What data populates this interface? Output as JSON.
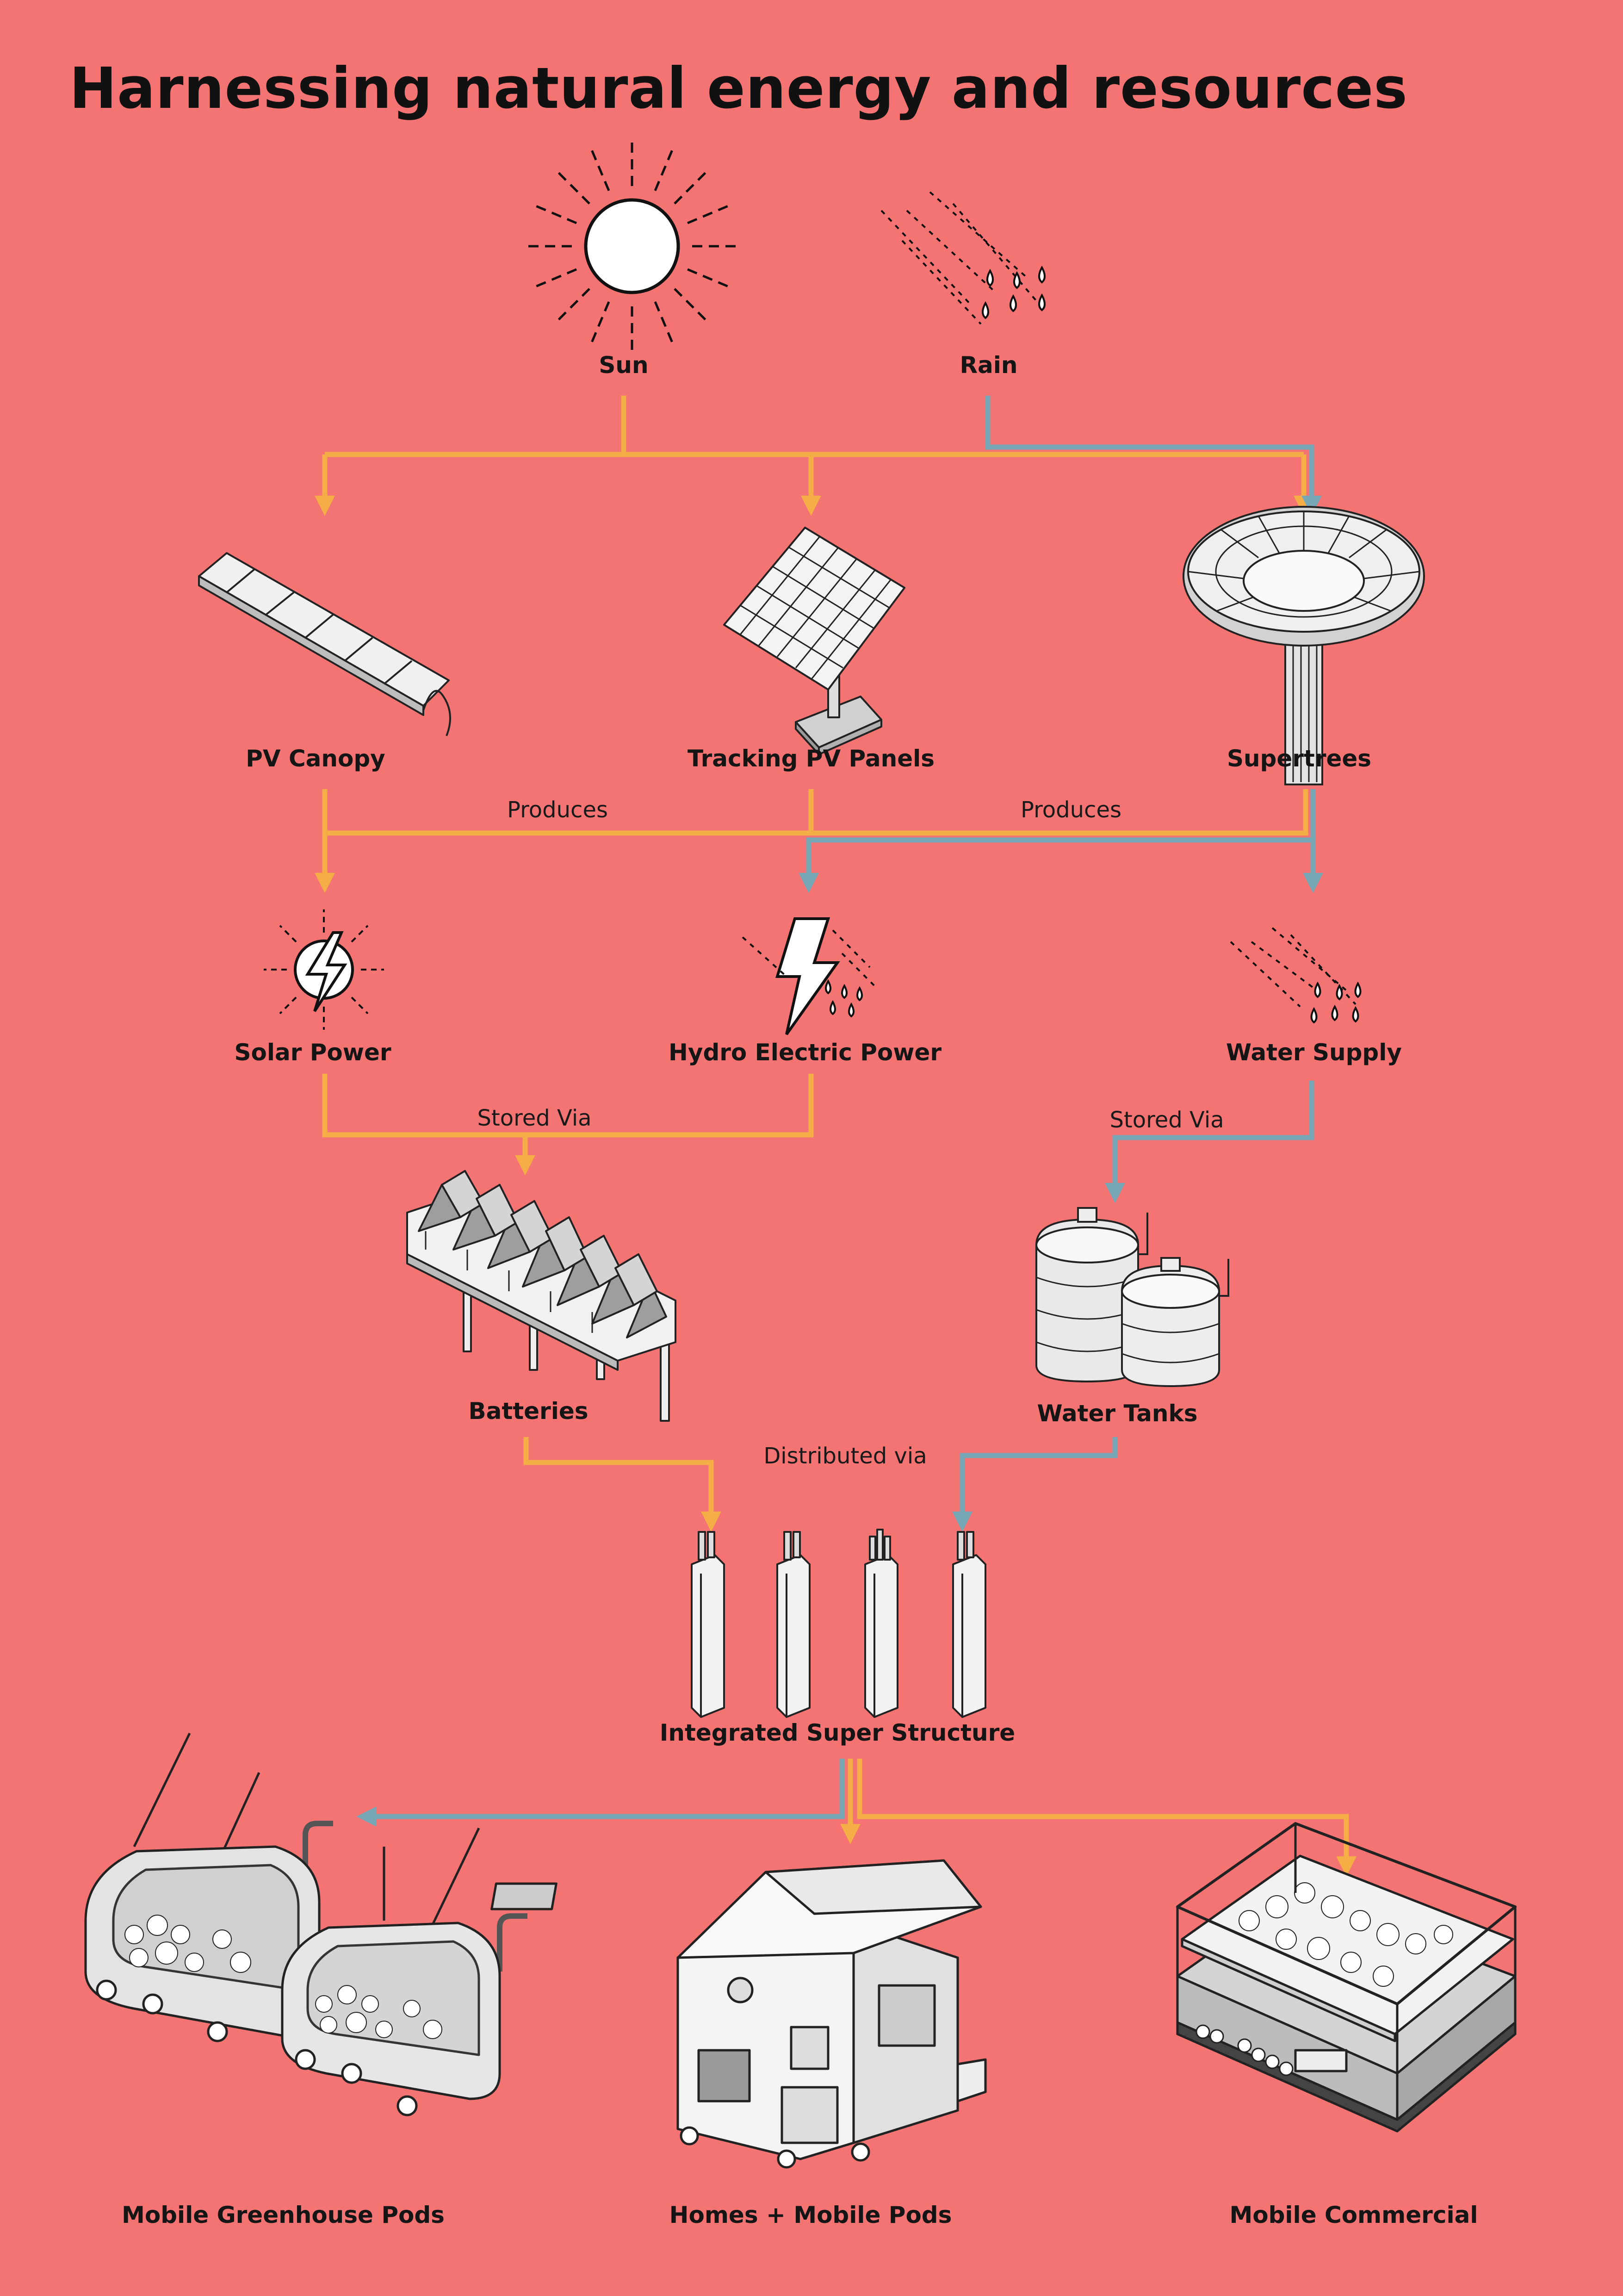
{
  "title": "Harnessing natural energy and resources",
  "nodes": {
    "sun": "Sun",
    "rain": "Rain",
    "pv_canopy": "PV Canopy",
    "tracking_pv": "Tracking PV Panels",
    "supertrees": "Supertrees",
    "solar_power": "Solar Power",
    "hydro_power": "Hydro Electric Power",
    "water_supply": "Water Supply",
    "batteries": "Batteries",
    "water_tanks": "Water Tanks",
    "super_structure": "Integrated Super Structure",
    "greenhouse_pods": "Mobile Greenhouse Pods",
    "homes_pods": "Homes + Mobile Pods",
    "mobile_commercial": "Mobile Commercial"
  },
  "edge_labels": {
    "produces_left": "Produces",
    "produces_right": "Produces",
    "stored_via_left": "Stored Via",
    "stored_via_right": "Stored Via",
    "distributed_via": "Distributed via"
  },
  "colors": {
    "background": "#F47373",
    "energy_flow": "#F5AE45",
    "water_flow": "#78A8B5"
  }
}
